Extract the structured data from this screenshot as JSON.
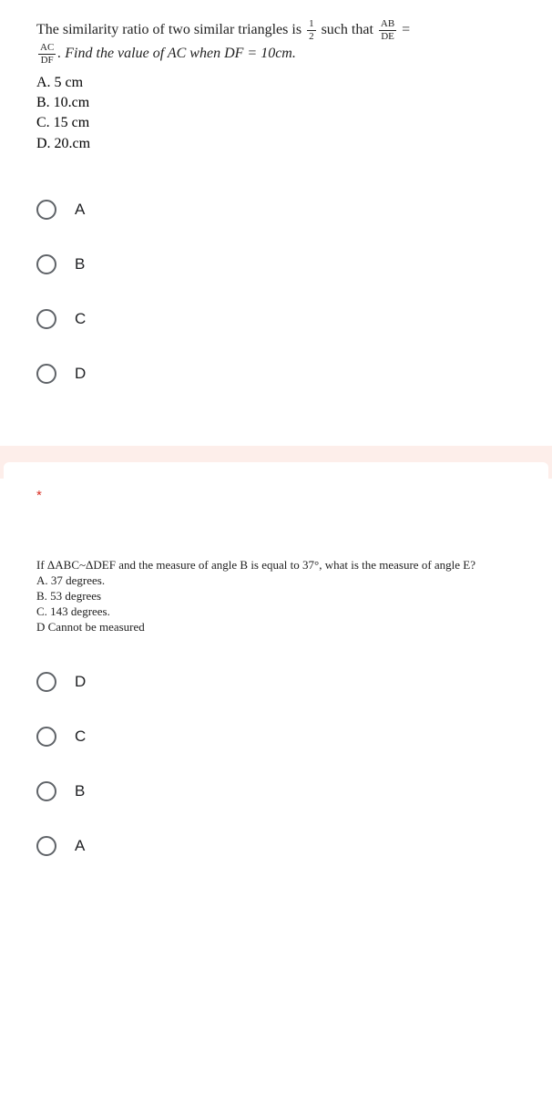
{
  "q1": {
    "line1_prefix": "The similarity ratio of two similar triangles is ",
    "frac1_num": "1",
    "frac1_den": "2",
    "mid1": " such that ",
    "frac2_num": "AB",
    "frac2_den": "DE",
    "eq": " =",
    "frac3_num": "AC",
    "frac3_den": "DF",
    "line2_suffix": ". Find the value of AC when DF = 10cm.",
    "ansA": "A. 5 cm",
    "ansB": "B. 10.cm",
    "ansC": "C. 15 cm",
    "ansD": "D. 20.cm",
    "optA": "A",
    "optB": "B",
    "optC": "C",
    "optD": "D"
  },
  "q2": {
    "required": "*",
    "text": "If ΔABC~ΔDEF and the measure of angle B is equal to 37°, what is the measure of angle E?",
    "ansA": "A. 37 degrees.",
    "ansB": "B. 53 degrees",
    "ansC": "C. 143 degrees.",
    "ansD": "D Cannot be measured",
    "optD": "D",
    "optC": "C",
    "optB": "B",
    "optA": "A"
  }
}
